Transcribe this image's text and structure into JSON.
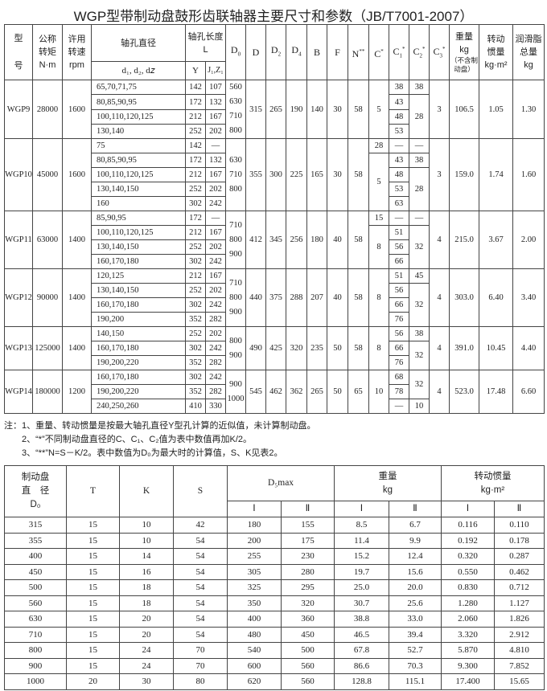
{
  "title": "WGP型带制动盘鼓形齿联轴器主要尺寸和参数（JB/T7001-2007）",
  "table1": {
    "headers": {
      "model": [
        "型",
        "号"
      ],
      "torque": [
        "公称",
        "转矩",
        "N·m"
      ],
      "speed": [
        "许用",
        "转速",
        "rpm"
      ],
      "bore": "轴孔直径",
      "bore_sub": "d₁, d₂, d𝑧",
      "length": [
        "轴孔长度",
        "L"
      ],
      "length_y": "Y",
      "length_jz": "J₁,Z₁",
      "dims": [
        {
          "t": "D",
          "sub": "0",
          "sup": ""
        },
        {
          "t": "D",
          "sub": "",
          "sup": ""
        },
        {
          "t": "D",
          "sub": "2",
          "sup": ""
        },
        {
          "t": "D",
          "sub": "4",
          "sup": ""
        },
        {
          "t": "B",
          "sub": "",
          "sup": ""
        },
        {
          "t": "F",
          "sub": "",
          "sup": ""
        },
        {
          "t": "N",
          "sub": "",
          "sup": "**"
        },
        {
          "t": "C",
          "sub": "",
          "sup": "*"
        },
        {
          "t": "C",
          "sub": "1",
          "sup": "*"
        },
        {
          "t": "C",
          "sub": "2",
          "sup": "*"
        },
        {
          "t": "C",
          "sub": "3",
          "sup": "*"
        }
      ],
      "weight": [
        "重量",
        "kg",
        "（不含制",
        "动盘）"
      ],
      "inertia": [
        "转动",
        "惯量",
        "kg·m²"
      ],
      "grease": [
        "润滑脂",
        "总量",
        "kg"
      ]
    },
    "groups": [
      {
        "model": "WGP9",
        "torque": "28000",
        "speed": "1600",
        "rows": [
          [
            "65,70,71,75",
            "142",
            "107"
          ],
          [
            "80,85,90,95",
            "172",
            "132"
          ],
          [
            "100,110,120,125",
            "212",
            "167"
          ],
          [
            "130,140",
            "252",
            "202"
          ]
        ],
        "D0": [
          "560",
          "630",
          "710",
          "800"
        ],
        "D": "315",
        "D2": "265",
        "D4": "190",
        "B": "140",
        "F": "30",
        "N": "58",
        "C": [
          [
            "5",
            4
          ]
        ],
        "C1": [
          [
            "38",
            1
          ],
          [
            "43",
            1
          ],
          [
            "48",
            1
          ],
          [
            "53",
            1
          ]
        ],
        "C2": [
          [
            "38",
            1
          ],
          [
            "28",
            3
          ]
        ],
        "C3": "3",
        "weight": "106.5",
        "inertia": "1.05",
        "grease": "1.30"
      },
      {
        "model": "WGP10",
        "torque": "45000",
        "speed": "1600",
        "rows": [
          [
            "75",
            "142",
            "—"
          ],
          [
            "80,85,90,95",
            "172",
            "132"
          ],
          [
            "100,110,120,125",
            "212",
            "167"
          ],
          [
            "130,140,150",
            "252",
            "202"
          ],
          [
            "160",
            "302",
            "242"
          ]
        ],
        "D0": [
          "630",
          "710",
          "800"
        ],
        "D": "355",
        "D2": "300",
        "D4": "225",
        "B": "165",
        "F": "30",
        "N": "58",
        "C": [
          [
            "28",
            1
          ],
          [
            "5",
            4
          ]
        ],
        "C1": [
          [
            "—",
            1
          ],
          [
            "43",
            1
          ],
          [
            "48",
            1
          ],
          [
            "53",
            1
          ],
          [
            "63",
            1
          ]
        ],
        "C2": [
          [
            "—",
            1
          ],
          [
            "38",
            1
          ],
          [
            "28",
            3
          ]
        ],
        "C3": "3",
        "weight": "159.0",
        "inertia": "1.74",
        "grease": "1.60"
      },
      {
        "model": "WGP11",
        "torque": "63000",
        "speed": "1400",
        "rows": [
          [
            "85,90,95",
            "172",
            "—"
          ],
          [
            "100,110,120,125",
            "212",
            "167"
          ],
          [
            "130,140,150",
            "252",
            "202"
          ],
          [
            "160,170,180",
            "302",
            "242"
          ]
        ],
        "D0": [
          "710",
          "800",
          "900"
        ],
        "D": "412",
        "D2": "345",
        "D4": "256",
        "B": "180",
        "F": "40",
        "N": "58",
        "C": [
          [
            "15",
            1
          ],
          [
            "8",
            3
          ]
        ],
        "C1": [
          [
            "—",
            1
          ],
          [
            "51",
            1
          ],
          [
            "56",
            1
          ],
          [
            "66",
            1
          ]
        ],
        "C2": [
          [
            "—",
            1
          ],
          [
            "32",
            3
          ]
        ],
        "C3": "4",
        "weight": "215.0",
        "inertia": "3.67",
        "grease": "2.00"
      },
      {
        "model": "WGP12",
        "torque": "90000",
        "speed": "1400",
        "rows": [
          [
            "120,125",
            "212",
            "167"
          ],
          [
            "130,140,150",
            "252",
            "202"
          ],
          [
            "160,170,180",
            "302",
            "242"
          ],
          [
            "190,200",
            "352",
            "282"
          ]
        ],
        "D0": [
          "710",
          "800",
          "900"
        ],
        "D": "440",
        "D2": "375",
        "D4": "288",
        "B": "207",
        "F": "40",
        "N": "58",
        "C": [
          [
            "8",
            4
          ]
        ],
        "C1": [
          [
            "51",
            1
          ],
          [
            "56",
            1
          ],
          [
            "66",
            1
          ],
          [
            "76",
            1
          ]
        ],
        "C2": [
          [
            "45",
            1
          ],
          [
            "32",
            3
          ]
        ],
        "C3": "4",
        "weight": "303.0",
        "inertia": "6.40",
        "grease": "3.40"
      },
      {
        "model": "WGP13",
        "torque": "125000",
        "speed": "1400",
        "rows": [
          [
            "140,150",
            "252",
            "202"
          ],
          [
            "160,170,180",
            "302",
            "242"
          ],
          [
            "190,200,220",
            "352",
            "282"
          ]
        ],
        "D0": [
          "800",
          "900"
        ],
        "D": "490",
        "D2": "425",
        "D4": "320",
        "B": "235",
        "F": "50",
        "N": "58",
        "C": [
          [
            "8",
            3
          ]
        ],
        "C1": [
          [
            "56",
            1
          ],
          [
            "66",
            1
          ],
          [
            "76",
            1
          ]
        ],
        "C2": [
          [
            "38",
            1
          ],
          [
            "32",
            2
          ]
        ],
        "C3": "4",
        "weight": "391.0",
        "inertia": "10.45",
        "grease": "4.40"
      },
      {
        "model": "WGP14",
        "torque": "180000",
        "speed": "1200",
        "rows": [
          [
            "160,170,180",
            "302",
            "242"
          ],
          [
            "190,200,220",
            "352",
            "282"
          ],
          [
            "240,250,260",
            "410",
            "330"
          ]
        ],
        "D0": [
          "900",
          "1000"
        ],
        "D": "545",
        "D2": "462",
        "D4": "362",
        "B": "265",
        "F": "50",
        "N": "65",
        "C": [
          [
            "10",
            3
          ]
        ],
        "C1": [
          [
            "68",
            1
          ],
          [
            "78",
            1
          ],
          [
            "—",
            1
          ]
        ],
        "C2": [
          [
            "32",
            2
          ],
          [
            "10",
            1
          ]
        ],
        "C3": "4",
        "weight": "523.0",
        "inertia": "17.48",
        "grease": "6.60"
      }
    ]
  },
  "notes": [
    "注：1、重量、转动惯量是按最大轴孔直径Y型孔计算的近似值，未计算制动盘。",
    "2、“*”不同制动盘直径的C、C₁、C₂值为表中数值再加K/2。",
    "3、“**”N=S－K/2。表中数值为D₀为最大时的计算值，S、K见表2。"
  ],
  "table2": {
    "headers": {
      "disc": [
        "制动盘",
        "直　径",
        "D₀"
      ],
      "T": "T",
      "K": "K",
      "S": "S",
      "d5max": "D₅max",
      "weight": [
        "重量",
        "kg"
      ],
      "inertia": [
        "转动惯量",
        "kg·m²"
      ],
      "sub": [
        "Ⅰ",
        "Ⅱ",
        "Ⅰ",
        "Ⅱ",
        "Ⅰ",
        "Ⅱ"
      ]
    },
    "rows": [
      [
        "315",
        "15",
        "10",
        "42",
        "180",
        "155",
        "8.5",
        "6.7",
        "0.116",
        "0.110"
      ],
      [
        "355",
        "15",
        "10",
        "54",
        "200",
        "175",
        "11.4",
        "9.9",
        "0.192",
        "0.178"
      ],
      [
        "400",
        "15",
        "14",
        "54",
        "255",
        "230",
        "15.2",
        "12.4",
        "0.320",
        "0.287"
      ],
      [
        "450",
        "15",
        "16",
        "54",
        "305",
        "280",
        "19.7",
        "15.6",
        "0.550",
        "0.462"
      ],
      [
        "500",
        "15",
        "18",
        "54",
        "325",
        "295",
        "25.0",
        "20.0",
        "0.830",
        "0.712"
      ],
      [
        "560",
        "15",
        "18",
        "54",
        "350",
        "320",
        "30.7",
        "25.6",
        "1.280",
        "1.127"
      ],
      [
        "630",
        "15",
        "20",
        "54",
        "400",
        "360",
        "38.8",
        "33.0",
        "2.060",
        "1.826"
      ],
      [
        "710",
        "15",
        "20",
        "54",
        "480",
        "450",
        "46.5",
        "39.4",
        "3.320",
        "2.912"
      ],
      [
        "800",
        "15",
        "24",
        "70",
        "540",
        "500",
        "67.8",
        "52.7",
        "5.870",
        "4.810"
      ],
      [
        "900",
        "15",
        "24",
        "70",
        "600",
        "560",
        "86.6",
        "70.3",
        "9.300",
        "7.852"
      ],
      [
        "1000",
        "20",
        "30",
        "80",
        "620",
        "560",
        "128.8",
        "115.1",
        "17.400",
        "15.65"
      ]
    ]
  }
}
